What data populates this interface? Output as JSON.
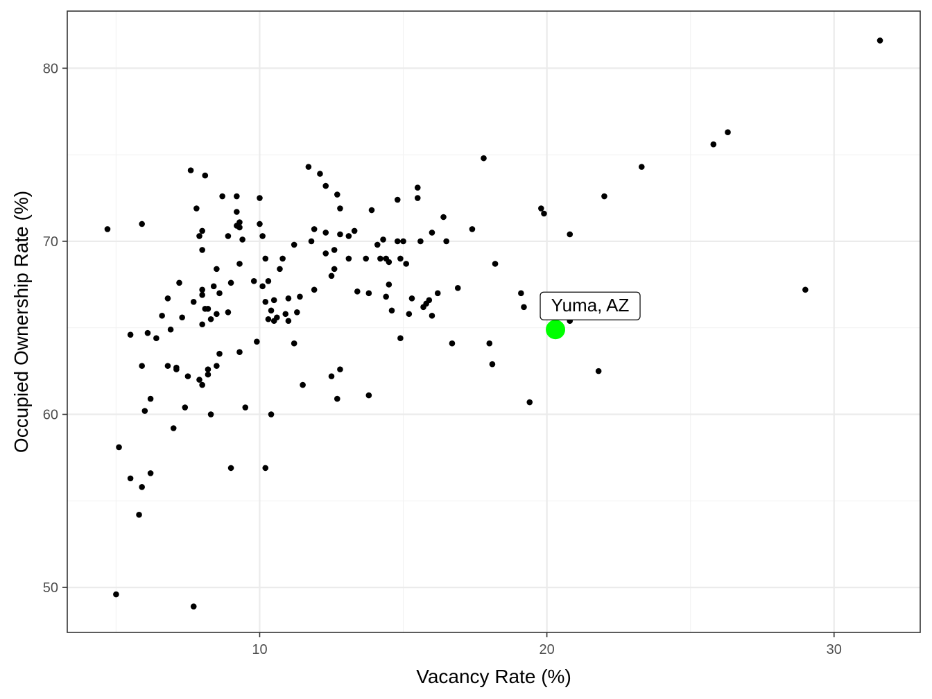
{
  "chart_data": {
    "type": "scatter",
    "title": "",
    "xlabel": "Vacancy Rate (%)",
    "ylabel": "Occupied Ownership Rate (%)",
    "xlim": [
      3.3,
      33.0
    ],
    "ylim": [
      47.4,
      83.3
    ],
    "x_ticks": [
      10,
      20,
      30
    ],
    "x_tick_labels": [
      "10",
      "20",
      "30"
    ],
    "y_ticks": [
      50,
      60,
      70,
      80
    ],
    "y_tick_labels": [
      "50",
      "60",
      "70",
      "80"
    ],
    "grid": true,
    "legend": "none",
    "colors": {
      "points": "#000000",
      "highlight": "#00ff00",
      "panel_border": "#333333",
      "grid": "#ebebeb"
    },
    "highlight": {
      "label": "Yuma, AZ",
      "x": 20.3,
      "y": 64.9
    },
    "points": [
      [
        4.7,
        70.7
      ],
      [
        5.0,
        49.6
      ],
      [
        5.1,
        58.1
      ],
      [
        5.5,
        64.6
      ],
      [
        5.5,
        56.3
      ],
      [
        5.8,
        54.2
      ],
      [
        5.9,
        71.0
      ],
      [
        5.9,
        62.8
      ],
      [
        5.9,
        55.8
      ],
      [
        6.0,
        60.2
      ],
      [
        6.1,
        64.7
      ],
      [
        6.2,
        60.9
      ],
      [
        6.2,
        56.6
      ],
      [
        6.4,
        64.4
      ],
      [
        6.6,
        65.7
      ],
      [
        6.8,
        66.7
      ],
      [
        6.8,
        62.8
      ],
      [
        6.9,
        64.9
      ],
      [
        7.0,
        59.2
      ],
      [
        7.1,
        62.6
      ],
      [
        7.1,
        62.7
      ],
      [
        7.2,
        67.6
      ],
      [
        7.3,
        65.6
      ],
      [
        7.4,
        60.4
      ],
      [
        7.5,
        62.2
      ],
      [
        7.6,
        74.1
      ],
      [
        7.7,
        66.5
      ],
      [
        7.7,
        48.9
      ],
      [
        7.8,
        71.9
      ],
      [
        7.9,
        62.0
      ],
      [
        7.9,
        70.3
      ],
      [
        8.0,
        70.6
      ],
      [
        8.0,
        69.5
      ],
      [
        8.0,
        67.2
      ],
      [
        8.0,
        66.9
      ],
      [
        8.0,
        65.2
      ],
      [
        8.0,
        61.7
      ],
      [
        8.1,
        73.8
      ],
      [
        8.1,
        66.1
      ],
      [
        8.2,
        66.1
      ],
      [
        8.2,
        62.6
      ],
      [
        8.2,
        62.3
      ],
      [
        8.3,
        65.5
      ],
      [
        8.3,
        60.0
      ],
      [
        8.4,
        67.4
      ],
      [
        8.5,
        68.4
      ],
      [
        8.5,
        65.8
      ],
      [
        8.5,
        62.8
      ],
      [
        8.6,
        67.0
      ],
      [
        8.6,
        63.5
      ],
      [
        8.7,
        72.6
      ],
      [
        8.9,
        70.3
      ],
      [
        8.9,
        65.9
      ],
      [
        9.0,
        67.6
      ],
      [
        9.0,
        56.9
      ],
      [
        9.2,
        72.6
      ],
      [
        9.2,
        71.7
      ],
      [
        9.2,
        70.9
      ],
      [
        9.3,
        71.1
      ],
      [
        9.3,
        70.8
      ],
      [
        9.3,
        68.7
      ],
      [
        9.3,
        63.6
      ],
      [
        9.4,
        70.1
      ],
      [
        9.5,
        60.4
      ],
      [
        9.8,
        67.7
      ],
      [
        9.9,
        64.2
      ],
      [
        10.0,
        72.5
      ],
      [
        10.0,
        71.0
      ],
      [
        10.1,
        67.4
      ],
      [
        10.1,
        70.3
      ],
      [
        10.2,
        69.0
      ],
      [
        10.2,
        66.5
      ],
      [
        10.2,
        56.9
      ],
      [
        10.3,
        67.7
      ],
      [
        10.3,
        65.5
      ],
      [
        10.4,
        66.0
      ],
      [
        10.4,
        60.0
      ],
      [
        10.5,
        65.4
      ],
      [
        10.5,
        66.6
      ],
      [
        10.6,
        65.6
      ],
      [
        10.7,
        68.4
      ],
      [
        10.8,
        69.0
      ],
      [
        10.9,
        65.8
      ],
      [
        11.0,
        66.7
      ],
      [
        11.0,
        65.4
      ],
      [
        11.2,
        69.8
      ],
      [
        11.2,
        64.1
      ],
      [
        11.3,
        65.9
      ],
      [
        11.4,
        66.8
      ],
      [
        11.5,
        61.7
      ],
      [
        11.7,
        74.3
      ],
      [
        11.8,
        70.0
      ],
      [
        11.9,
        67.2
      ],
      [
        11.9,
        70.7
      ],
      [
        12.1,
        73.9
      ],
      [
        12.3,
        73.2
      ],
      [
        12.3,
        70.5
      ],
      [
        12.3,
        69.3
      ],
      [
        12.5,
        68.0
      ],
      [
        12.5,
        62.2
      ],
      [
        12.6,
        69.5
      ],
      [
        12.6,
        68.4
      ],
      [
        12.7,
        72.7
      ],
      [
        12.7,
        60.9
      ],
      [
        12.8,
        71.9
      ],
      [
        12.8,
        70.4
      ],
      [
        12.8,
        62.6
      ],
      [
        13.1,
        70.3
      ],
      [
        13.1,
        69.0
      ],
      [
        13.3,
        70.6
      ],
      [
        13.4,
        67.1
      ],
      [
        13.7,
        69.0
      ],
      [
        13.8,
        67.0
      ],
      [
        13.8,
        61.1
      ],
      [
        13.9,
        71.8
      ],
      [
        14.1,
        69.8
      ],
      [
        14.2,
        69.0
      ],
      [
        14.3,
        70.1
      ],
      [
        14.4,
        69.0
      ],
      [
        14.4,
        66.8
      ],
      [
        14.5,
        68.8
      ],
      [
        14.5,
        67.5
      ],
      [
        14.6,
        66.0
      ],
      [
        14.8,
        72.4
      ],
      [
        14.8,
        70.0
      ],
      [
        14.9,
        69.0
      ],
      [
        14.9,
        64.4
      ],
      [
        15.0,
        70.0
      ],
      [
        15.1,
        68.7
      ],
      [
        15.2,
        65.8
      ],
      [
        15.3,
        66.7
      ],
      [
        15.5,
        73.1
      ],
      [
        15.5,
        72.5
      ],
      [
        15.6,
        70.0
      ],
      [
        15.7,
        66.2
      ],
      [
        15.8,
        66.4
      ],
      [
        15.9,
        66.6
      ],
      [
        16.0,
        70.5
      ],
      [
        16.0,
        65.7
      ],
      [
        16.2,
        67.0
      ],
      [
        16.4,
        71.4
      ],
      [
        16.5,
        70.0
      ],
      [
        16.9,
        67.3
      ],
      [
        17.4,
        70.7
      ],
      [
        17.8,
        74.8
      ],
      [
        18.0,
        64.1
      ],
      [
        18.1,
        62.9
      ],
      [
        18.2,
        68.7
      ],
      [
        16.7,
        64.1
      ],
      [
        19.1,
        67.0
      ],
      [
        19.2,
        66.2
      ],
      [
        19.4,
        60.7
      ],
      [
        19.8,
        71.9
      ],
      [
        19.9,
        71.6
      ],
      [
        20.3,
        65.8
      ],
      [
        20.8,
        65.4
      ],
      [
        20.8,
        70.4
      ],
      [
        21.8,
        62.5
      ],
      [
        22.0,
        72.6
      ],
      [
        23.3,
        74.3
      ],
      [
        25.8,
        75.6
      ],
      [
        26.3,
        76.3
      ],
      [
        29.0,
        67.2
      ],
      [
        31.6,
        81.6
      ]
    ]
  }
}
